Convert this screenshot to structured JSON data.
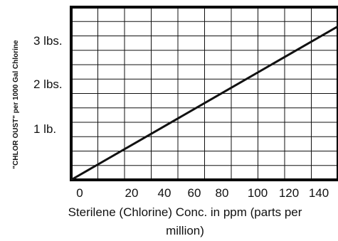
{
  "chart_data": {
    "type": "line",
    "title": "",
    "xlabel_line1": "Sterilene (Chlorine) Conc. in ppm (parts per",
    "xlabel_line2": "million)",
    "ylabel": "\"CHLOR OUST\" per 1000 Gal Chlorine",
    "x_tick_labels": [
      "0",
      "20",
      "40",
      "60",
      "80",
      "100",
      "120",
      "140"
    ],
    "y_tick_labels": [
      "1 lb.",
      "2 lbs.",
      "3 lbs."
    ],
    "y_tick_values": [
      1,
      2,
      3
    ],
    "xlim": [
      0,
      150
    ],
    "ylim": [
      0,
      3.6
    ],
    "grid": true,
    "series": [
      {
        "x": [
          0,
          150
        ],
        "y": [
          0,
          3.2
        ]
      }
    ],
    "colors": {
      "line": "#111111",
      "grid": "#111111",
      "border": "#000000"
    }
  }
}
